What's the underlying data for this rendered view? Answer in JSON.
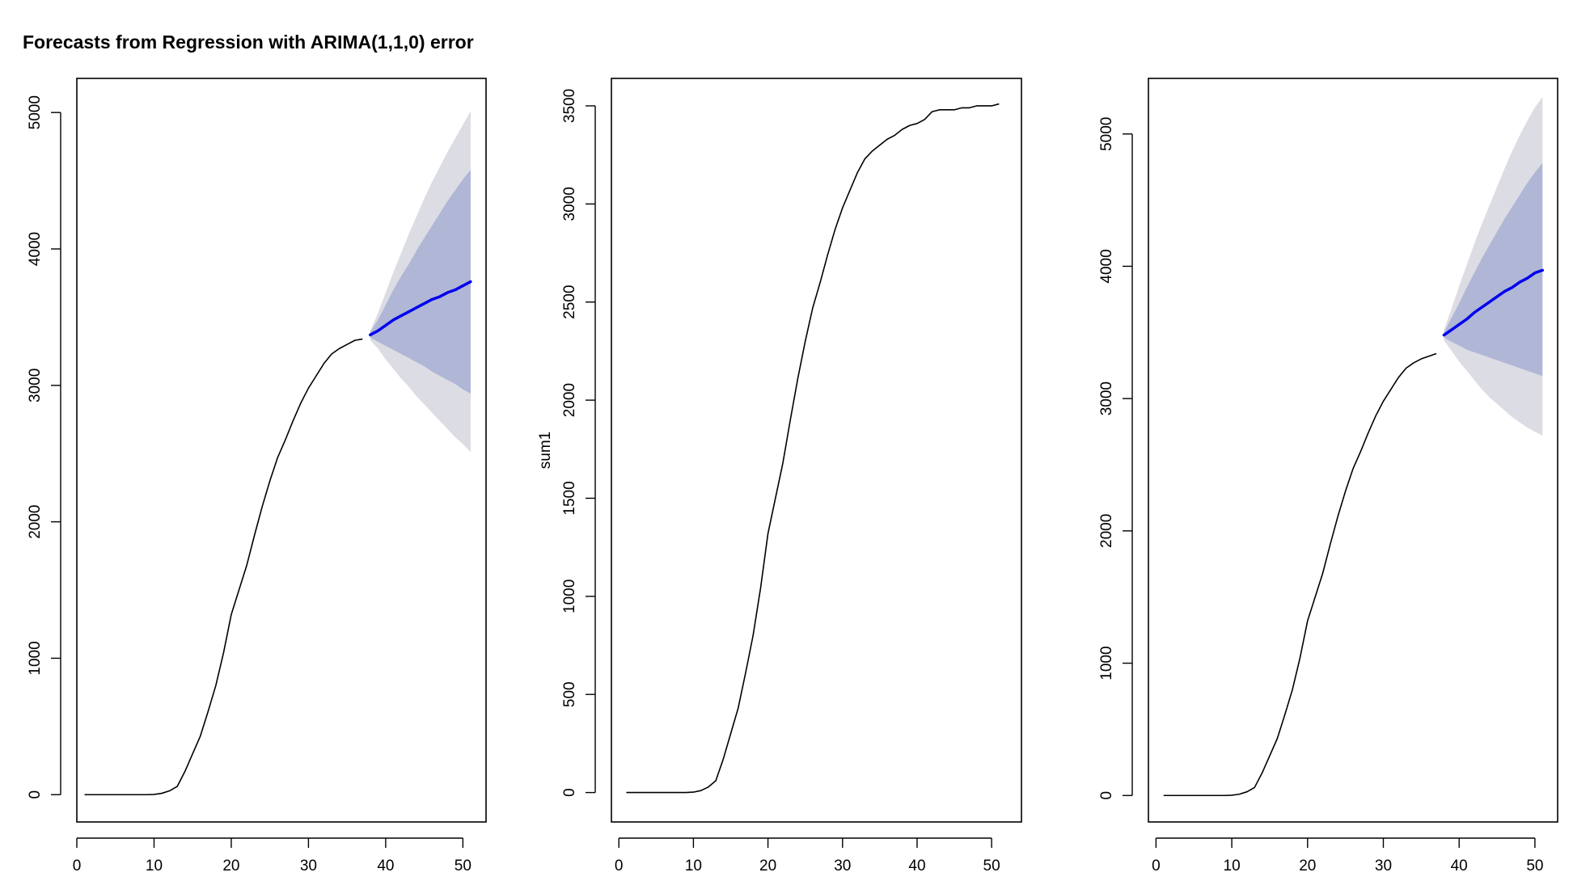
{
  "colors": {
    "background": "#ffffff",
    "line": "#000000",
    "forecast_line": "#0000ee",
    "pi80": "#b0b6d6",
    "pi95": "#dcdce4",
    "axis": "#000000"
  },
  "chart_data": [
    {
      "type": "line",
      "title": "Forecasts from Regression with ARIMA(1,1,0) error",
      "xlabel": "",
      "ylabel": "",
      "xlim": [
        0,
        53
      ],
      "ylim": [
        -200,
        5250
      ],
      "x_ticks": [
        0,
        10,
        20,
        30,
        40,
        50
      ],
      "y_ticks": [
        0,
        1000,
        2000,
        3000,
        4000,
        5000
      ],
      "grid": false,
      "series": [
        {
          "role": "observed",
          "x": [
            1,
            2,
            3,
            4,
            5,
            6,
            7,
            8,
            9,
            10,
            11,
            12,
            13,
            14,
            15,
            16,
            17,
            18,
            19,
            20,
            21,
            22,
            23,
            24,
            25,
            26,
            27,
            28,
            29,
            30,
            31,
            32,
            33,
            34,
            35,
            36,
            37
          ],
          "y": [
            0,
            0,
            0,
            0,
            0,
            0,
            0,
            0,
            0,
            2,
            10,
            28,
            60,
            170,
            300,
            430,
            610,
            800,
            1040,
            1320,
            1500,
            1680,
            1900,
            2110,
            2300,
            2470,
            2600,
            2740,
            2870,
            2980,
            3070,
            3160,
            3230,
            3270,
            3300,
            3330,
            3340
          ]
        },
        {
          "role": "forecast",
          "x": [
            38,
            39,
            40,
            41,
            42,
            43,
            44,
            45,
            46,
            47,
            48,
            49,
            50,
            51
          ],
          "y": [
            3370,
            3400,
            3440,
            3480,
            3510,
            3540,
            3570,
            3600,
            3630,
            3650,
            3680,
            3700,
            3730,
            3760
          ],
          "lo80": [
            3350,
            3320,
            3290,
            3260,
            3230,
            3200,
            3170,
            3140,
            3100,
            3070,
            3040,
            3010,
            2970,
            2940
          ],
          "hi80": [
            3390,
            3480,
            3590,
            3700,
            3800,
            3890,
            3990,
            4080,
            4170,
            4260,
            4350,
            4430,
            4510,
            4580
          ],
          "lo95": [
            3330,
            3270,
            3190,
            3120,
            3050,
            2990,
            2920,
            2860,
            2800,
            2740,
            2680,
            2620,
            2570,
            2510
          ],
          "hi95": [
            3400,
            3530,
            3680,
            3830,
            3970,
            4110,
            4240,
            4370,
            4490,
            4600,
            4710,
            4810,
            4910,
            5010
          ]
        }
      ]
    },
    {
      "type": "line",
      "title": "",
      "xlabel": "",
      "ylabel": "sum1",
      "xlim": [
        -1,
        54
      ],
      "ylim": [
        -150,
        3640
      ],
      "x_ticks": [
        0,
        10,
        20,
        30,
        40,
        50
      ],
      "y_ticks": [
        0,
        500,
        1000,
        1500,
        2000,
        2500,
        3000,
        3500
      ],
      "grid": false,
      "series": [
        {
          "role": "observed",
          "x": [
            1,
            2,
            3,
            4,
            5,
            6,
            7,
            8,
            9,
            10,
            11,
            12,
            13,
            14,
            15,
            16,
            17,
            18,
            19,
            20,
            21,
            22,
            23,
            24,
            25,
            26,
            27,
            28,
            29,
            30,
            31,
            32,
            33,
            34,
            35,
            36,
            37,
            38,
            39,
            40,
            41,
            42,
            43,
            44,
            45,
            46,
            47,
            48,
            49,
            50,
            51
          ],
          "y": [
            0,
            0,
            0,
            0,
            0,
            0,
            0,
            0,
            0,
            2,
            10,
            28,
            60,
            170,
            300,
            430,
            610,
            800,
            1040,
            1320,
            1500,
            1680,
            1900,
            2110,
            2300,
            2470,
            2600,
            2740,
            2870,
            2980,
            3070,
            3160,
            3230,
            3270,
            3300,
            3330,
            3350,
            3380,
            3400,
            3410,
            3430,
            3470,
            3480,
            3480,
            3480,
            3490,
            3490,
            3500,
            3500,
            3500,
            3510
          ]
        }
      ]
    },
    {
      "type": "line",
      "title": "Forecasts from Regression with ARIMA(1,1,0) error",
      "xlabel": "",
      "ylabel": "",
      "xlim": [
        -1,
        53
      ],
      "ylim": [
        -200,
        5420
      ],
      "x_ticks": [
        0,
        10,
        20,
        30,
        40,
        50
      ],
      "y_ticks": [
        0,
        1000,
        2000,
        3000,
        4000,
        5000
      ],
      "grid": false,
      "series": [
        {
          "role": "observed",
          "x": [
            1,
            2,
            3,
            4,
            5,
            6,
            7,
            8,
            9,
            10,
            11,
            12,
            13,
            14,
            15,
            16,
            17,
            18,
            19,
            20,
            21,
            22,
            23,
            24,
            25,
            26,
            27,
            28,
            29,
            30,
            31,
            32,
            33,
            34,
            35,
            36,
            37
          ],
          "y": [
            0,
            0,
            0,
            0,
            0,
            0,
            0,
            0,
            0,
            2,
            10,
            28,
            60,
            170,
            300,
            430,
            610,
            800,
            1040,
            1320,
            1500,
            1680,
            1900,
            2110,
            2300,
            2470,
            2600,
            2740,
            2870,
            2980,
            3070,
            3160,
            3230,
            3270,
            3300,
            3320,
            3340
          ]
        },
        {
          "role": "forecast",
          "x": [
            38,
            39,
            40,
            41,
            42,
            43,
            44,
            45,
            46,
            47,
            48,
            49,
            50,
            51
          ],
          "y": [
            3480,
            3520,
            3560,
            3600,
            3650,
            3690,
            3730,
            3770,
            3810,
            3840,
            3880,
            3910,
            3950,
            3970
          ],
          "lo80": [
            3460,
            3430,
            3400,
            3370,
            3350,
            3330,
            3310,
            3290,
            3270,
            3250,
            3230,
            3210,
            3190,
            3170
          ],
          "hi80": [
            3500,
            3610,
            3720,
            3840,
            3950,
            4060,
            4160,
            4260,
            4360,
            4450,
            4540,
            4630,
            4710,
            4780
          ],
          "lo95": [
            3440,
            3360,
            3280,
            3210,
            3140,
            3070,
            3010,
            2960,
            2910,
            2860,
            2820,
            2780,
            2750,
            2720
          ],
          "hi95": [
            3520,
            3680,
            3850,
            4010,
            4170,
            4320,
            4460,
            4600,
            4740,
            4870,
            4990,
            5100,
            5200,
            5280
          ]
        }
      ]
    }
  ]
}
